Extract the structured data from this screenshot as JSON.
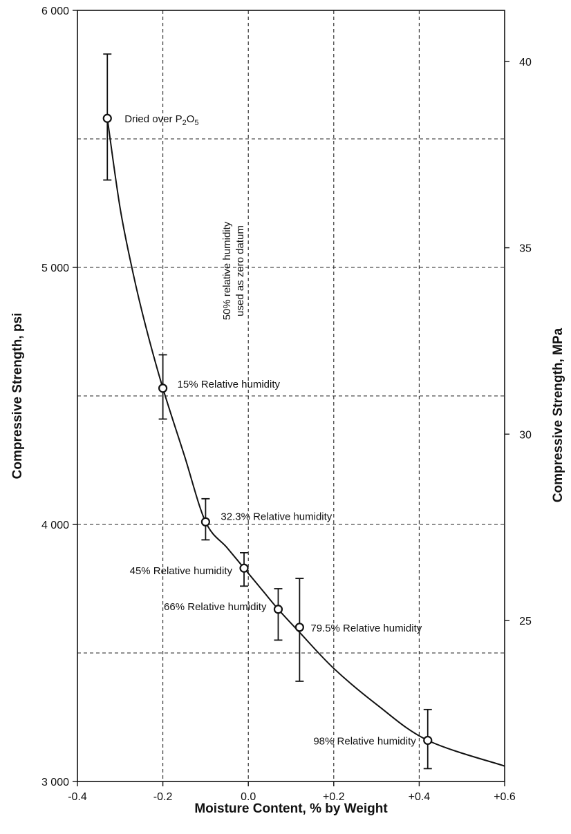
{
  "chart_data": {
    "type": "scatter",
    "xlabel": "Moisture Content, % by Weight",
    "ylabel": "Compressive Strength, psi",
    "y2label": "Compressive Strength, MPa",
    "xlim": [
      -0.4,
      0.6
    ],
    "ylim": [
      3000,
      6000
    ],
    "y2lim": [
      20.68,
      41.37
    ],
    "x_ticks": [
      -0.4,
      -0.2,
      0.0,
      0.2,
      0.4,
      0.6
    ],
    "x_tick_labels": [
      "-0.4",
      "-0.2",
      "0.0",
      "+0.2",
      "+0.4",
      "+0.6"
    ],
    "y_ticks": [
      3000,
      4000,
      5000,
      6000
    ],
    "y_tick_labels": [
      "3 000",
      "4 000",
      "5 000",
      "6 000"
    ],
    "y2_ticks": [
      25,
      30,
      35,
      40
    ],
    "y2_tick_labels": [
      "25",
      "30",
      "35",
      "40"
    ],
    "grid": true,
    "grid_style": "dashed",
    "grid_x": [
      -0.2,
      0.0,
      0.2,
      0.4
    ],
    "grid_y": [
      3500,
      4000,
      4500,
      5000,
      5500
    ],
    "points": [
      {
        "x": -0.33,
        "y": 5580,
        "err_low": 5340,
        "err_high": 5830,
        "label": "Dried over P2O5"
      },
      {
        "x": -0.2,
        "y": 4530,
        "err_low": 4410,
        "err_high": 4660,
        "label": "15% Relative humidity"
      },
      {
        "x": -0.1,
        "y": 4010,
        "err_low": 3940,
        "err_high": 4100,
        "label": "32.3% Relative humidity"
      },
      {
        "x": -0.01,
        "y": 3830,
        "err_low": 3760,
        "err_high": 3890,
        "label": "45% Relative humidity"
      },
      {
        "x": 0.07,
        "y": 3670,
        "err_low": 3550,
        "err_high": 3750,
        "label": "66% Relative humidity"
      },
      {
        "x": 0.12,
        "y": 3600,
        "err_low": 3390,
        "err_high": 3790,
        "label": "79.5% Relative humidity"
      },
      {
        "x": 0.42,
        "y": 3160,
        "err_low": 3050,
        "err_high": 3280,
        "label": "98% Relative humidity"
      }
    ],
    "curve": {
      "x": [
        -0.33,
        -0.3,
        -0.27,
        -0.24,
        -0.2,
        -0.15,
        -0.1,
        -0.05,
        -0.01,
        0.03,
        0.07,
        0.12,
        0.2,
        0.3,
        0.42,
        0.6
      ],
      "y": [
        5580,
        5230,
        4980,
        4770,
        4530,
        4270,
        4010,
        3910,
        3830,
        3750,
        3670,
        3580,
        3440,
        3300,
        3160,
        3060
      ]
    },
    "annotations": [
      {
        "text_line1": "50% relative humidity",
        "text_line2": "used as zero datum",
        "orientation": "vertical",
        "x": 0.0
      }
    ]
  }
}
